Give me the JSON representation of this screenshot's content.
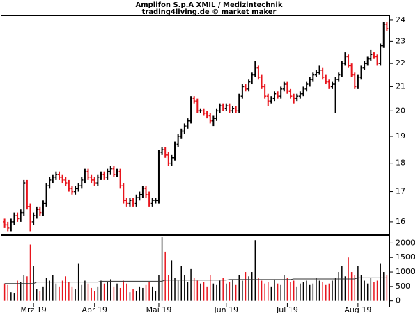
{
  "chart_data": [
    {
      "type": "ohlc",
      "title": "Amplifon S.p.A XMIL / Medizintechnik",
      "subtitle": "trading4living.de © market maker",
      "log_scale": true,
      "up_color": "#000000",
      "down_color": "#e8141c",
      "xlim": [
        -1,
        120
      ],
      "ylim": [
        15.6,
        24.2
      ],
      "yticks": [
        16,
        17,
        18,
        19,
        20,
        21,
        22,
        23,
        24
      ],
      "open": [
        16.0,
        15.9,
        15.8,
        16.0,
        16.2,
        16.1,
        16.3,
        17.3,
        16.5,
        16.0,
        16.2,
        16.4,
        16.3,
        16.6,
        17.2,
        17.4,
        17.5,
        17.6,
        17.5,
        17.4,
        17.3,
        17.1,
        17.0,
        17.1,
        17.2,
        17.4,
        17.7,
        17.5,
        17.4,
        17.3,
        17.5,
        17.6,
        17.5,
        17.7,
        17.8,
        17.6,
        17.7,
        17.2,
        16.7,
        16.6,
        16.7,
        16.6,
        16.8,
        16.9,
        17.1,
        16.9,
        16.6,
        16.7,
        16.7,
        18.4,
        18.5,
        18.3,
        18.0,
        18.2,
        18.7,
        19.0,
        19.2,
        19.4,
        19.6,
        20.5,
        20.4,
        20.0,
        20.0,
        19.9,
        19.8,
        19.6,
        19.7,
        20.0,
        20.2,
        20.1,
        20.2,
        20.0,
        20.1,
        20.0,
        20.6,
        21.0,
        20.9,
        21.2,
        21.5,
        21.8,
        21.4,
        21.0,
        20.6,
        20.4,
        20.5,
        20.7,
        20.6,
        20.9,
        21.1,
        20.8,
        20.6,
        20.5,
        20.6,
        20.7,
        20.9,
        21.1,
        21.3,
        21.5,
        21.6,
        21.7,
        21.4,
        21.2,
        21.0,
        21.1,
        21.3,
        21.5,
        22.0,
        22.3,
        21.9,
        21.5,
        21.0,
        21.4,
        21.8,
        22.0,
        22.2,
        22.4,
        22.3,
        22.0,
        22.8,
        23.8
      ],
      "high": [
        16.1,
        16.0,
        16.1,
        16.3,
        16.3,
        16.4,
        17.4,
        17.4,
        16.6,
        16.3,
        16.5,
        16.5,
        16.7,
        17.3,
        17.5,
        17.6,
        17.7,
        17.7,
        17.6,
        17.5,
        17.4,
        17.2,
        17.2,
        17.3,
        17.5,
        17.8,
        17.8,
        17.6,
        17.5,
        17.6,
        17.7,
        17.7,
        17.8,
        17.9,
        17.9,
        17.8,
        17.8,
        17.3,
        16.8,
        16.8,
        16.8,
        16.9,
        17.0,
        17.2,
        17.2,
        17.0,
        16.8,
        16.8,
        18.5,
        18.6,
        18.6,
        18.4,
        18.3,
        18.8,
        19.1,
        19.3,
        19.5,
        19.7,
        20.6,
        20.6,
        20.5,
        20.1,
        20.1,
        20.0,
        19.9,
        19.8,
        20.1,
        20.3,
        20.3,
        20.3,
        20.3,
        20.2,
        20.2,
        20.7,
        21.1,
        21.1,
        21.3,
        21.6,
        22.1,
        21.9,
        21.5,
        21.1,
        20.7,
        20.6,
        20.8,
        20.8,
        21.0,
        21.2,
        21.2,
        20.9,
        20.7,
        20.7,
        20.8,
        21.0,
        21.2,
        21.4,
        21.6,
        21.7,
        21.9,
        21.8,
        21.5,
        21.3,
        21.2,
        21.4,
        21.6,
        22.1,
        22.5,
        22.4,
        22.0,
        21.6,
        21.5,
        21.9,
        22.1,
        22.3,
        22.6,
        22.5,
        22.4,
        22.9,
        23.9,
        23.9
      ],
      "low": [
        15.8,
        15.7,
        15.7,
        15.9,
        16.0,
        16.0,
        16.2,
        16.4,
        15.7,
        15.9,
        16.1,
        16.2,
        16.2,
        16.5,
        17.1,
        17.3,
        17.4,
        17.4,
        17.3,
        17.2,
        17.0,
        16.9,
        16.9,
        17.0,
        17.1,
        17.3,
        17.4,
        17.3,
        17.2,
        17.2,
        17.4,
        17.4,
        17.4,
        17.6,
        17.5,
        17.5,
        17.1,
        16.6,
        16.5,
        16.5,
        16.5,
        16.5,
        16.7,
        16.8,
        16.8,
        16.5,
        16.5,
        16.6,
        16.6,
        18.3,
        18.2,
        17.9,
        17.9,
        18.1,
        18.6,
        18.9,
        19.1,
        19.3,
        19.5,
        20.3,
        19.9,
        19.9,
        19.8,
        19.7,
        19.5,
        19.4,
        19.6,
        19.9,
        20.0,
        20.0,
        19.9,
        19.9,
        19.9,
        19.9,
        20.5,
        20.8,
        20.8,
        21.1,
        21.4,
        21.3,
        20.9,
        20.5,
        20.2,
        20.3,
        20.4,
        20.5,
        20.5,
        20.8,
        20.7,
        20.5,
        20.3,
        20.4,
        20.5,
        20.6,
        20.8,
        21.0,
        21.2,
        21.4,
        21.5,
        21.3,
        21.1,
        20.9,
        20.9,
        19.9,
        21.2,
        21.4,
        21.9,
        21.8,
        21.4,
        20.9,
        20.9,
        21.3,
        21.7,
        21.9,
        22.1,
        22.2,
        21.9,
        21.9,
        22.7,
        23.5
      ],
      "close": [
        15.9,
        15.8,
        16.0,
        16.2,
        16.1,
        16.3,
        17.3,
        16.5,
        16.0,
        16.2,
        16.4,
        16.3,
        16.6,
        17.2,
        17.4,
        17.5,
        17.6,
        17.5,
        17.4,
        17.3,
        17.1,
        17.0,
        17.1,
        17.2,
        17.4,
        17.7,
        17.5,
        17.4,
        17.3,
        17.5,
        17.6,
        17.5,
        17.7,
        17.8,
        17.6,
        17.7,
        17.2,
        16.7,
        16.6,
        16.7,
        16.6,
        16.8,
        16.9,
        17.1,
        16.9,
        16.6,
        16.7,
        16.7,
        18.4,
        18.5,
        18.3,
        18.0,
        18.2,
        18.7,
        19.0,
        19.2,
        19.4,
        19.6,
        20.5,
        20.4,
        20.0,
        20.0,
        19.9,
        19.8,
        19.6,
        19.7,
        20.0,
        20.2,
        20.1,
        20.2,
        20.0,
        20.1,
        20.0,
        20.6,
        21.0,
        20.9,
        21.2,
        21.5,
        21.8,
        21.4,
        21.0,
        20.6,
        20.4,
        20.5,
        20.7,
        20.6,
        20.9,
        21.1,
        20.8,
        20.6,
        20.5,
        20.6,
        20.7,
        20.9,
        21.1,
        21.3,
        21.5,
        21.6,
        21.7,
        21.4,
        21.2,
        21.0,
        21.1,
        21.3,
        21.5,
        22.0,
        22.3,
        21.9,
        21.5,
        21.0,
        21.4,
        21.8,
        22.0,
        22.2,
        22.4,
        22.3,
        22.0,
        22.8,
        23.8,
        23.6
      ]
    },
    {
      "type": "volume",
      "xlim": [
        -1,
        120
      ],
      "ylim": [
        -200,
        2250
      ],
      "yticks": [
        0,
        500,
        1000,
        1500,
        2000
      ],
      "average_color": "#333333",
      "xticks": [
        {
          "value": 9,
          "label": "Mrz 19"
        },
        {
          "value": 28,
          "label": "Apr 19"
        },
        {
          "value": 48,
          "label": "Mai 19"
        },
        {
          "value": 69,
          "label": "Jun 19"
        },
        {
          "value": 88,
          "label": "Jul 19"
        },
        {
          "value": 110,
          "label": "Aug 19"
        }
      ],
      "values": [
        600,
        550,
        300,
        280,
        700,
        650,
        900,
        850,
        1950,
        1200,
        400,
        350,
        500,
        800,
        700,
        900,
        600,
        500,
        700,
        850,
        650,
        500,
        400,
        1300,
        550,
        700,
        600,
        450,
        350,
        500,
        700,
        600,
        650,
        750,
        500,
        600,
        450,
        700,
        600,
        300,
        400,
        350,
        500,
        450,
        550,
        650,
        500,
        350,
        900,
        2200,
        1700,
        900,
        1400,
        800,
        700,
        1200,
        900,
        650,
        1100,
        800,
        700,
        600,
        650,
        500,
        900,
        600,
        550,
        700,
        800,
        600,
        650,
        750,
        550,
        900,
        700,
        1000,
        850,
        1000,
        2100,
        800,
        700,
        600,
        650,
        500,
        750,
        600,
        550,
        900,
        800,
        650,
        700,
        500,
        600,
        650,
        700,
        550,
        600,
        800,
        700,
        650,
        550,
        600,
        700,
        800,
        1000,
        1200,
        850,
        1500,
        1000,
        900,
        1200,
        900,
        700,
        600,
        800,
        650,
        700,
        1300,
        1000,
        900
      ],
      "average": [
        600,
        600,
        600,
        600,
        600,
        600,
        600,
        600,
        600,
        600,
        650,
        650,
        650,
        650,
        650,
        650,
        650,
        650,
        650,
        650,
        650,
        650,
        650,
        650,
        650,
        650,
        650,
        650,
        650,
        650,
        680,
        680,
        680,
        680,
        680,
        680,
        680,
        680,
        680,
        680,
        680,
        680,
        680,
        680,
        680,
        680,
        680,
        680,
        680,
        680,
        720,
        720,
        720,
        720,
        720,
        720,
        720,
        720,
        720,
        720,
        720,
        720,
        720,
        720,
        720,
        720,
        720,
        720,
        720,
        720,
        740,
        740,
        740,
        740,
        740,
        740,
        740,
        740,
        740,
        740,
        740,
        740,
        740,
        740,
        740,
        740,
        740,
        740,
        740,
        740,
        760,
        760,
        760,
        760,
        760,
        760,
        760,
        760,
        760,
        760,
        760,
        760,
        760,
        760,
        760,
        760,
        760,
        760,
        760,
        760,
        800,
        800,
        800,
        800,
        800,
        800,
        800,
        800,
        800,
        800
      ]
    }
  ]
}
